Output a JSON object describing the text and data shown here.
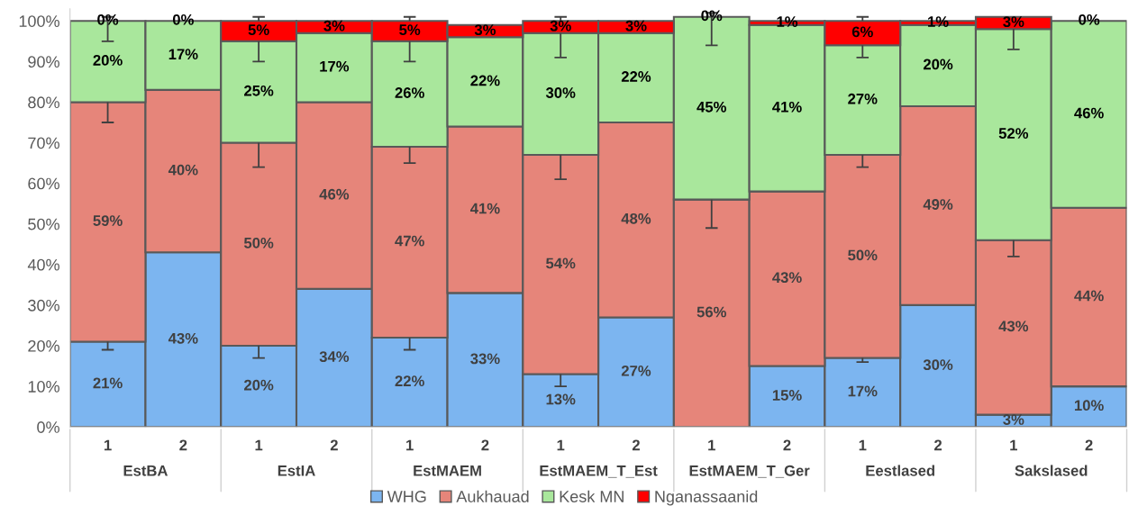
{
  "chart_data": {
    "type": "bar",
    "stacked": true,
    "categories": [
      "1",
      "2",
      "1",
      "2",
      "1",
      "2",
      "1",
      "2",
      "1",
      "2",
      "1",
      "2",
      "1",
      "2"
    ],
    "annotations": [
      "EstBA",
      "EstIA",
      "EstMAEM",
      "EstMAEM_T_Est",
      "EstMAEM_T_Ger",
      "Eestlased",
      "Sakslased"
    ],
    "series": [
      {
        "name": "WHG",
        "color": "#7cb5f0",
        "values": [
          21,
          43,
          20,
          34,
          22,
          33,
          13,
          27,
          0,
          15,
          17,
          30,
          3,
          10
        ],
        "value_labels": [
          "21%",
          "43%",
          "20%",
          "34%",
          "22%",
          "33%",
          "13%",
          "27%",
          null,
          "15%",
          "17%",
          "30%",
          "3%",
          "10%"
        ],
        "errors": [
          [
            19,
            21
          ],
          null,
          [
            17,
            20
          ],
          null,
          [
            19,
            22
          ],
          null,
          [
            10,
            13
          ],
          null,
          null,
          null,
          [
            16,
            17
          ],
          null,
          null,
          null
        ]
      },
      {
        "name": "Aukhauad",
        "color": "#e6857a",
        "values": [
          59,
          40,
          50,
          46,
          47,
          41,
          54,
          48,
          56,
          43,
          50,
          49,
          43,
          44
        ],
        "value_labels": [
          "59%",
          "40%",
          "50%",
          "46%",
          "47%",
          "41%",
          "54%",
          "48%",
          "56%",
          "43%",
          "50%",
          "49%",
          "43%",
          "44%"
        ],
        "errors": [
          [
            75,
            80
          ],
          null,
          [
            64,
            70
          ],
          null,
          [
            65,
            69
          ],
          null,
          [
            61,
            67
          ],
          null,
          [
            49,
            56
          ],
          null,
          [
            64,
            67
          ],
          null,
          [
            42,
            46
          ],
          null
        ]
      },
      {
        "name": "Kesk MN",
        "color": "#a9e79c",
        "values": [
          20,
          17,
          25,
          17,
          26,
          22,
          30,
          22,
          45,
          41,
          27,
          20,
          52,
          46
        ],
        "value_labels": [
          "20%",
          "17%",
          "25%",
          "17%",
          "26%",
          "22%",
          "30%",
          "22%",
          "45%",
          "41%",
          "27%",
          "20%",
          "52%",
          "46%"
        ],
        "errors": [
          [
            95,
            100
          ],
          null,
          [
            90,
            95
          ],
          null,
          [
            90,
            95
          ],
          null,
          [
            91,
            97
          ],
          null,
          [
            94,
            101
          ],
          null,
          [
            91,
            94
          ],
          null,
          [
            93,
            98
          ],
          null
        ]
      },
      {
        "name": "Nganassaanid",
        "color": "#ff0000",
        "values": [
          0,
          0,
          5,
          3,
          5,
          3,
          3,
          3,
          0,
          1,
          6,
          1,
          3,
          0
        ],
        "value_labels": [
          "0%",
          "0%",
          "5%",
          "3%",
          "5%",
          "3%",
          "3%",
          "3%",
          "0%",
          "1%",
          "6%",
          "1%",
          "3%",
          "0%"
        ],
        "errors": [
          [
            100,
            101
          ],
          null,
          [
            100,
            101
          ],
          null,
          [
            100,
            101
          ],
          null,
          [
            100,
            101
          ],
          null,
          [
            101,
            102
          ],
          null,
          [
            100,
            101
          ],
          null,
          null,
          null
        ]
      }
    ],
    "ylim": [
      0,
      103
    ],
    "yticks": [
      {
        "value": 0,
        "label": "0%"
      },
      {
        "value": 10,
        "label": "10%"
      },
      {
        "value": 20,
        "label": "20%"
      },
      {
        "value": 30,
        "label": "30%"
      },
      {
        "value": 40,
        "label": "40%"
      },
      {
        "value": 50,
        "label": "50%"
      },
      {
        "value": 60,
        "label": "60%"
      },
      {
        "value": 70,
        "label": "70%"
      },
      {
        "value": 80,
        "label": "80%"
      },
      {
        "value": 90,
        "label": "90%"
      },
      {
        "value": 100,
        "label": "100%"
      }
    ],
    "grid": false,
    "legend": "bottom"
  }
}
